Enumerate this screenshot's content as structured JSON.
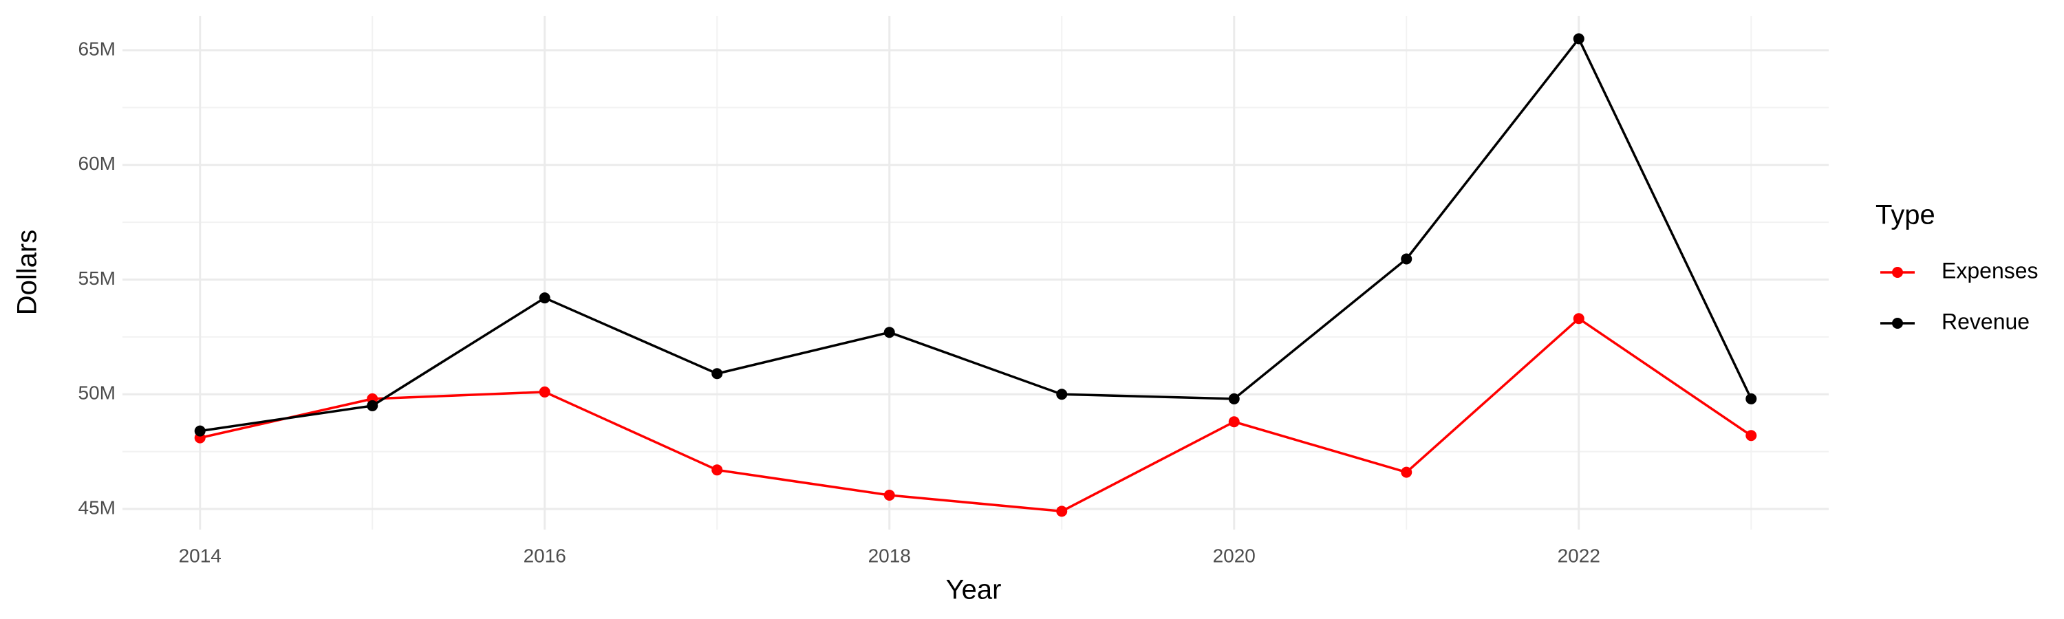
{
  "chart_data": {
    "type": "line",
    "x_label": "Year",
    "y_label": "Dollars",
    "legend_title": "Type",
    "x": [
      2014,
      2015,
      2016,
      2017,
      2018,
      2019,
      2020,
      2021,
      2022,
      2023
    ],
    "series": [
      {
        "name": "Expenses",
        "color": "#ff0000",
        "values": [
          48100000,
          49800000,
          50100000,
          46700000,
          45600000,
          44900000,
          48800000,
          46600000,
          53300000,
          48200000
        ]
      },
      {
        "name": "Revenue",
        "color": "#000000",
        "values": [
          48400000,
          49500000,
          54200000,
          50900000,
          52700000,
          50000000,
          49800000,
          55900000,
          65500000,
          49800000
        ]
      }
    ],
    "xlim": [
      2013.55,
      2023.45
    ],
    "xticks": [
      2014,
      2016,
      2018,
      2020,
      2022
    ],
    "ylim": [
      44100000,
      66500000
    ],
    "yticks": [
      {
        "value": 45000000,
        "label": "45M"
      },
      {
        "value": 50000000,
        "label": "50M"
      },
      {
        "value": 55000000,
        "label": "55M"
      },
      {
        "value": 60000000,
        "label": "60M"
      },
      {
        "value": 65000000,
        "label": "65M"
      }
    ],
    "grid": true,
    "legend_position": "right"
  }
}
